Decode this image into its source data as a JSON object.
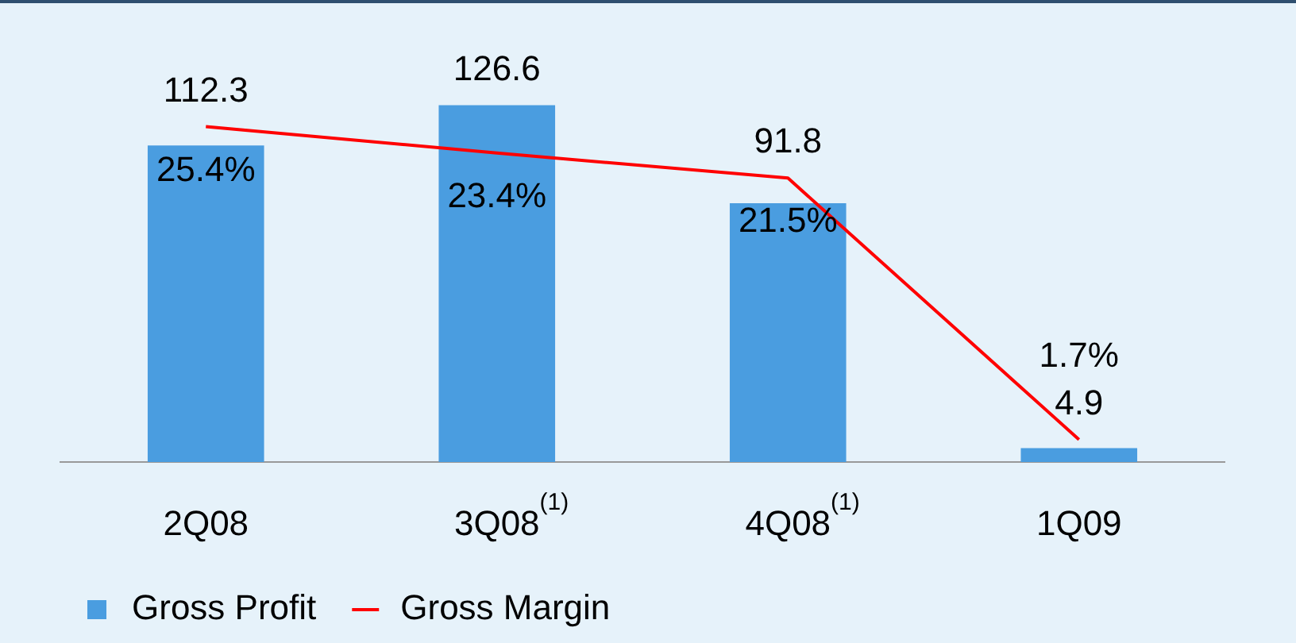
{
  "chart_data": {
    "type": "bar",
    "categories": [
      "2Q08",
      "3Q08$^{(1)}$",
      "4Q08$^{(1)}$",
      "1Q09"
    ],
    "series": [
      {
        "name": "Gross Profit",
        "color": "#4a9de0",
        "values": [
          112.3,
          126.6,
          91.8,
          4.9
        ]
      },
      {
        "name": "Gross Margin",
        "type": "line",
        "axis": "y2",
        "color": "#ff0000",
        "values": [
          25.4,
          23.4,
          21.5,
          1.7
        ],
        "value_labels": [
          "25.4%",
          "23.4%",
          "21.5%",
          "1.7%"
        ]
      }
    ],
    "data_labels": true,
    "relative": false,
    "legend": "bottom left",
    "grid": false,
    "marker": "none"
  }
}
